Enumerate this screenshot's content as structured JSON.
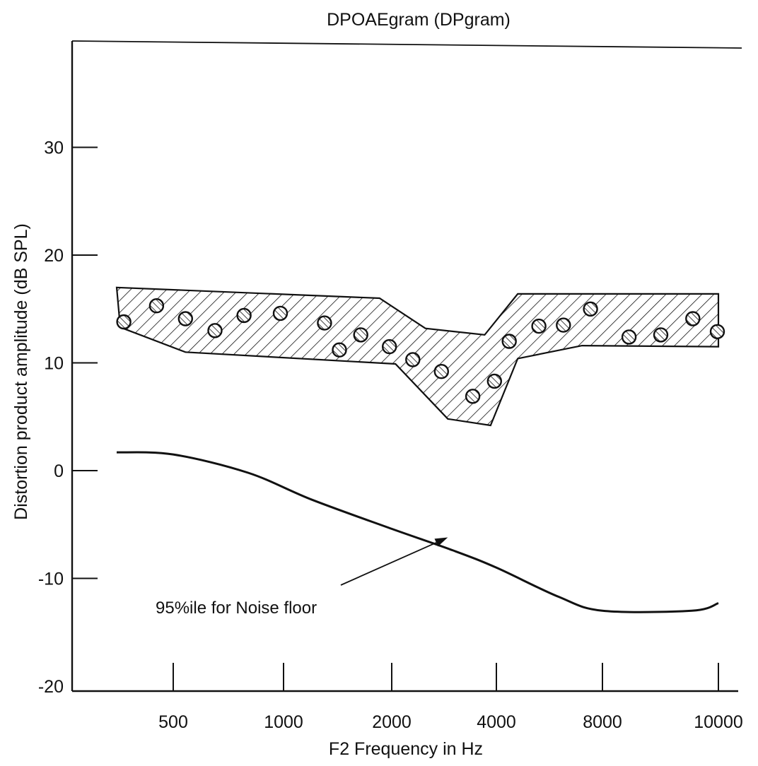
{
  "chart_data": {
    "type": "line",
    "title": "DPOAEgram (DPgram)",
    "xlabel": "F2 Frequency in Hz",
    "ylabel": "Distortion product amplitude (dB SPL)",
    "x_scale": "log",
    "x_ticks": [
      "500",
      "1000",
      "2000",
      "4000",
      "8000",
      "10000"
    ],
    "y_ticks": [
      "30",
      "20",
      "10",
      "0",
      "-10",
      "-20"
    ],
    "ylim": [
      -20,
      40
    ],
    "grid": false,
    "series": [
      {
        "kind": "points",
        "x": [
          320,
          430,
          540,
          650,
          780,
          980,
          1300,
          1430,
          1640,
          1970,
          2300,
          2780,
          3420,
          3950,
          4350,
          5280,
          6200,
          7400,
          8420,
          8950,
          9520,
          9980
        ],
        "y": [
          13.8,
          15.3,
          14.1,
          13.0,
          14.4,
          14.6,
          13.7,
          11.2,
          12.6,
          11.5,
          10.3,
          9.2,
          6.9,
          8.3,
          12.0,
          13.4,
          13.5,
          15.0,
          12.4,
          12.6,
          14.1,
          12.9
        ]
      },
      {
        "kind": "band",
        "upper_x": [
          300,
          1850,
          2500,
          3700,
          4600,
          10000
        ],
        "upper_y": [
          17.0,
          16.0,
          13.2,
          12.6,
          16.4,
          16.4
        ],
        "lower_x": [
          310,
          540,
          2050,
          2900,
          3850,
          4600,
          7000,
          10000
        ],
        "lower_y": [
          13.3,
          11.0,
          9.9,
          4.8,
          4.2,
          10.4,
          11.6,
          11.5
        ]
      },
      {
        "kind": "curve",
        "x": [
          300,
          500,
          800,
          1200,
          2000,
          3000,
          4000,
          6000,
          8000,
          9500,
          10000
        ],
        "y": [
          1.7,
          1.5,
          -0.2,
          -2.7,
          -5.4,
          -7.4,
          -9.0,
          -11.7,
          -13.0,
          -13.0,
          -12.3
        ]
      }
    ],
    "annotations": [
      {
        "text": "95%ile for Noise floor",
        "arrow_to": {
          "x": 2900,
          "y": -6.2
        }
      }
    ]
  }
}
